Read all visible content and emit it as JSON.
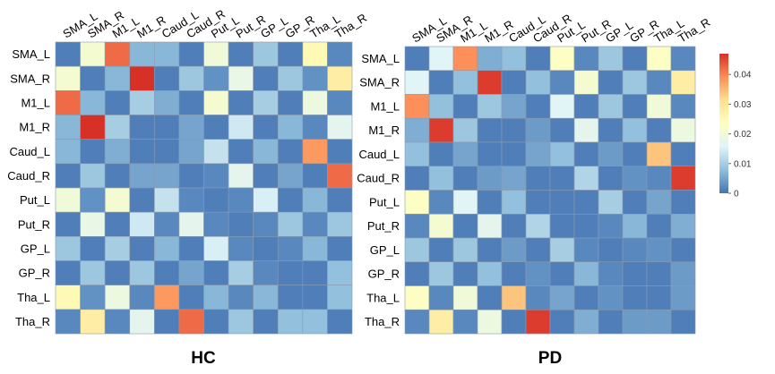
{
  "chart_data": [
    {
      "type": "heatmap",
      "title": "HC",
      "row_labels": [
        "SMA_L",
        "SMA_R",
        "M1_L",
        "M1_R",
        "Caud_L",
        "Caud_R",
        "Put_L",
        "Put_R",
        "GP_L",
        "GP_R",
        "Tha_L",
        "Tha_R"
      ],
      "col_labels": [
        "SMA_L",
        "SMA_R",
        "M1_L",
        "M1_R",
        "Caud_L",
        "Caud_R",
        "Put_L",
        "Put_R",
        "GP_L",
        "GP_R",
        "Tha_L",
        "Tha_R"
      ],
      "values": [
        [
          0.001,
          0.021,
          0.042,
          0.007,
          0.007,
          0.001,
          0.02,
          0.001,
          0.009,
          0.001,
          0.025,
          0.002
        ],
        [
          0.021,
          0.001,
          0.007,
          0.047,
          0.001,
          0.009,
          0.003,
          0.018,
          0.001,
          0.009,
          0.003,
          0.028
        ],
        [
          0.042,
          0.007,
          0.001,
          0.01,
          0.006,
          0.001,
          0.021,
          0.001,
          0.01,
          0.001,
          0.019,
          0.002
        ],
        [
          0.007,
          0.047,
          0.01,
          0.001,
          0.001,
          0.005,
          0.001,
          0.014,
          0.001,
          0.007,
          0.002,
          0.017
        ],
        [
          0.007,
          0.001,
          0.006,
          0.001,
          0.001,
          0.005,
          0.013,
          0.001,
          0.007,
          0.001,
          0.038,
          0.001
        ],
        [
          0.001,
          0.009,
          0.001,
          0.005,
          0.005,
          0.001,
          0.002,
          0.017,
          0.001,
          0.005,
          0.001,
          0.042
        ],
        [
          0.02,
          0.003,
          0.021,
          0.001,
          0.013,
          0.002,
          0.001,
          0.002,
          0.015,
          0.001,
          0.007,
          0.001
        ],
        [
          0.001,
          0.018,
          0.001,
          0.014,
          0.002,
          0.017,
          0.002,
          0.001,
          0.002,
          0.009,
          0.002,
          0.009
        ],
        [
          0.009,
          0.001,
          0.01,
          0.001,
          0.007,
          0.001,
          0.015,
          0.002,
          0.001,
          0.002,
          0.007,
          0.001
        ],
        [
          0.001,
          0.009,
          0.001,
          0.009,
          0.001,
          0.005,
          0.001,
          0.01,
          0.002,
          0.001,
          0.001,
          0.008
        ],
        [
          0.025,
          0.003,
          0.019,
          0.002,
          0.038,
          0.001,
          0.007,
          0.002,
          0.007,
          0.001,
          0.001,
          0.008
        ],
        [
          0.002,
          0.028,
          0.002,
          0.017,
          0.001,
          0.042,
          0.001,
          0.009,
          0.001,
          0.008,
          0.008,
          0.001
        ]
      ]
    },
    {
      "type": "heatmap",
      "title": "PD",
      "row_labels": [
        "SMA_L",
        "SMA_R",
        "M1_L",
        "M1_R",
        "Caud_L",
        "Caud_R",
        "Put_L",
        "Put_R",
        "GP_L",
        "GP_R",
        "Tha_L",
        "Tha_R"
      ],
      "col_labels": [
        "SMA_L",
        "SMA_R",
        "M1_L",
        "M1_R",
        "Caud_L",
        "Caud_R",
        "Put_L",
        "Put_R",
        "GP_L",
        "GP_R",
        "Tha_L",
        "Tha_R"
      ],
      "values": [
        [
          0.001,
          0.016,
          0.039,
          0.006,
          0.008,
          0.001,
          0.023,
          0.002,
          0.009,
          0.001,
          0.023,
          0.002
        ],
        [
          0.016,
          0.001,
          0.008,
          0.046,
          0.001,
          0.008,
          0.002,
          0.021,
          0.001,
          0.009,
          0.002,
          0.028
        ],
        [
          0.039,
          0.008,
          0.001,
          0.009,
          0.005,
          0.001,
          0.016,
          0.001,
          0.009,
          0.001,
          0.02,
          0.002
        ],
        [
          0.006,
          0.046,
          0.009,
          0.001,
          0.001,
          0.004,
          0.001,
          0.017,
          0.001,
          0.008,
          0.001,
          0.019
        ],
        [
          0.008,
          0.001,
          0.005,
          0.001,
          0.001,
          0.005,
          0.008,
          0.001,
          0.004,
          0.001,
          0.034,
          0.001
        ],
        [
          0.001,
          0.008,
          0.001,
          0.004,
          0.005,
          0.001,
          0.001,
          0.011,
          0.001,
          0.003,
          0.002,
          0.046
        ],
        [
          0.023,
          0.002,
          0.016,
          0.001,
          0.008,
          0.001,
          0.001,
          0.001,
          0.01,
          0.001,
          0.005,
          0.001
        ],
        [
          0.002,
          0.021,
          0.001,
          0.017,
          0.001,
          0.011,
          0.001,
          0.001,
          0.002,
          0.007,
          0.001,
          0.006
        ],
        [
          0.009,
          0.001,
          0.009,
          0.001,
          0.004,
          0.001,
          0.01,
          0.002,
          0.001,
          0.002,
          0.003,
          0.001
        ],
        [
          0.001,
          0.009,
          0.001,
          0.008,
          0.001,
          0.003,
          0.001,
          0.007,
          0.002,
          0.001,
          0.001,
          0.004
        ],
        [
          0.023,
          0.002,
          0.02,
          0.001,
          0.034,
          0.002,
          0.005,
          0.001,
          0.003,
          0.001,
          0.001,
          0.004
        ],
        [
          0.002,
          0.028,
          0.002,
          0.019,
          0.001,
          0.046,
          0.001,
          0.006,
          0.001,
          0.004,
          0.004,
          0.001
        ]
      ]
    }
  ],
  "colorbar": {
    "range": [
      0,
      0.047
    ],
    "ticks": [
      "0",
      "0.01",
      "0.02",
      "0.03",
      "0.04"
    ],
    "tick_values": [
      0,
      0.01,
      0.02,
      0.03,
      0.04
    ],
    "colors": [
      "#4575b4",
      "#91bfdb",
      "#e0f3f8",
      "#ffffbf",
      "#fee090",
      "#fc8d59",
      "#d73027"
    ]
  }
}
